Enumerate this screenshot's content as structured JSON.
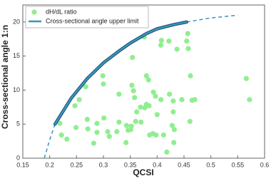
{
  "chart_data": {
    "type": "combo",
    "x_label": "QCSI",
    "y_label": "Cross-sectional angle 1:n",
    "xlim": [
      0.15,
      0.6
    ],
    "ylim": [
      0,
      22.5
    ],
    "xticks": [
      0.15,
      0.2,
      0.25,
      0.3,
      0.35,
      0.4,
      0.45,
      0.5,
      0.55,
      0.6
    ],
    "yticks": [
      0,
      5,
      10,
      15,
      20
    ],
    "legend": "top-left",
    "series": [
      {
        "name": "dH/dL ratio",
        "type": "scatter",
        "color": "#90ee90",
        "x": [
          0.219,
          0.222,
          0.232,
          0.247,
          0.255,
          0.249,
          0.267,
          0.27,
          0.271,
          0.282,
          0.288,
          0.288,
          0.299,
          0.3,
          0.301,
          0.308,
          0.311,
          0.325,
          0.329,
          0.329,
          0.342,
          0.343,
          0.346,
          0.354,
          0.351,
          0.352,
          0.353,
          0.356,
          0.358,
          0.362,
          0.36,
          0.369,
          0.37,
          0.376,
          0.377,
          0.38,
          0.38,
          0.384,
          0.385,
          0.386,
          0.392,
          0.398,
          0.393,
          0.397,
          0.4,
          0.407,
          0.407,
          0.412,
          0.418,
          0.408,
          0.422,
          0.423,
          0.428,
          0.43,
          0.43,
          0.431,
          0.432,
          0.437,
          0.446,
          0.455,
          0.457,
          0.458,
          0.462,
          0.465,
          0.461,
          0.47,
          0.566,
          0.572
        ],
        "values": [
          5.1,
          3.4,
          2.8,
          7.7,
          8.6,
          4.5,
          10.5,
          5.7,
          4.3,
          2.2,
          5.1,
          3.8,
          12.1,
          10.9,
          5.9,
          3.9,
          3.2,
          3.9,
          9.4,
          5.3,
          2.3,
          4.8,
          4.1,
          14.8,
          4.2,
          4.7,
          10.7,
          9.9,
          8.9,
          6.8,
          5.4,
          7.5,
          5.3,
          17.8,
          7.4,
          7.9,
          12.1,
          11.5,
          7.7,
          3.4,
          3.6,
          3.4,
          9.7,
          9.1,
          6.4,
          16.6,
          8.6,
          3.4,
          0.9,
          17.3,
          17.2,
          9.4,
          4.8,
          8.4,
          6.8,
          2.3,
          4.2,
          16.0,
          8.6,
          17.2,
          18.3,
          16.1,
          12.1,
          8.5,
          5.4,
          8.6,
          11.7,
          8.6
        ]
      },
      {
        "name": "Cross-sectional angle upper limit",
        "type": "line",
        "color": "#3a93bd",
        "x": [
          0.21,
          0.24,
          0.27,
          0.3,
          0.33,
          0.35,
          0.38,
          0.4,
          0.43,
          0.455
        ],
        "values": [
          5.0,
          8.8,
          11.7,
          14.0,
          15.8,
          16.9,
          18.3,
          19.0,
          19.6,
          20.0
        ],
        "extrapolation": [
          {
            "x": [
              0.19,
              0.2,
              0.21
            ],
            "values": [
              0,
              2.7,
              5.0
            ]
          },
          {
            "x": [
              0.455,
              0.5,
              0.55
            ],
            "values": [
              20.0,
              20.6,
              21.0
            ]
          }
        ]
      }
    ]
  }
}
